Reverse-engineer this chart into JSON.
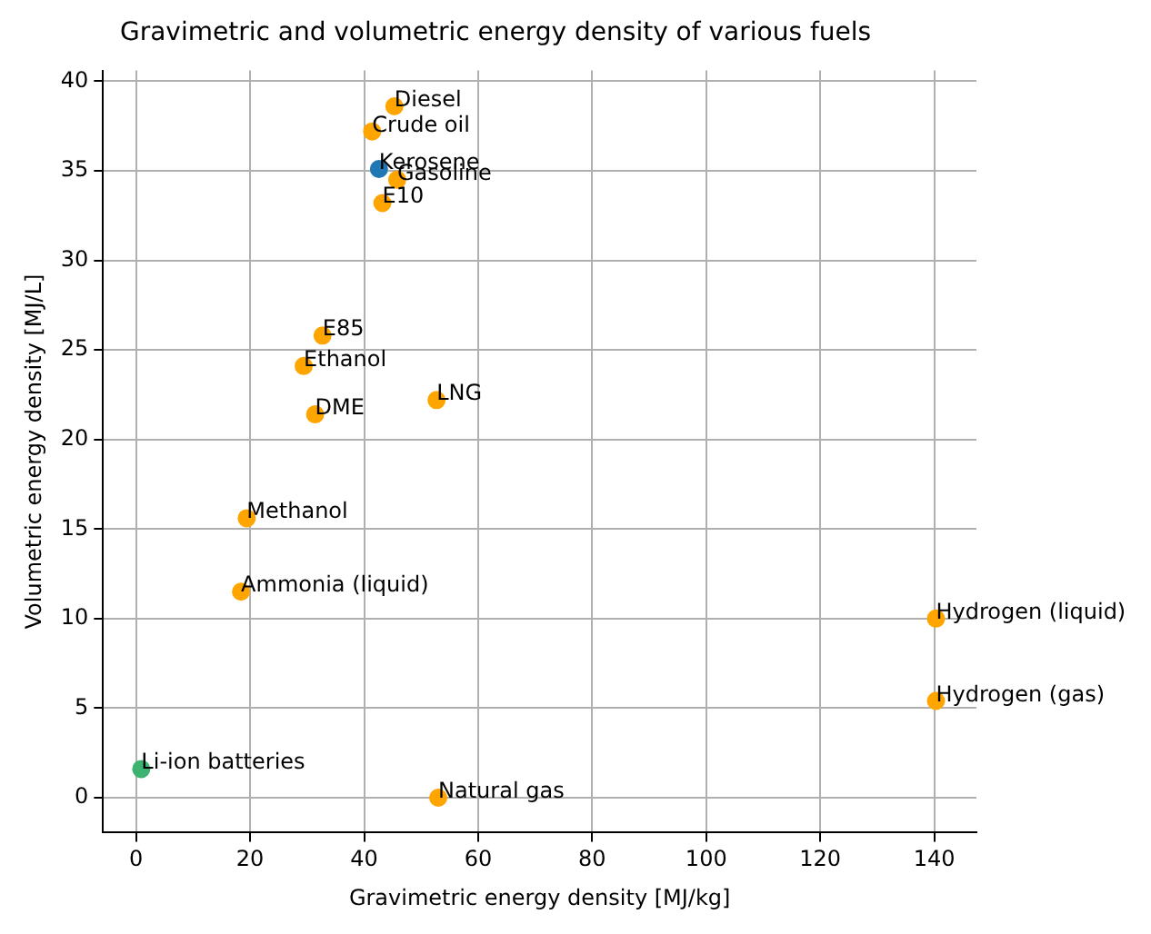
{
  "chart_data": {
    "type": "scatter",
    "title": "Gravimetric and volumetric energy density of various fuels",
    "xlabel": "Gravimetric energy density [MJ/kg]",
    "ylabel": "Volumetric energy density [MJ/L]",
    "x": [
      45.3,
      41.4,
      42.6,
      45.8,
      43.2,
      32.7,
      29.4,
      31.4,
      52.7,
      19.4,
      18.4,
      140.3,
      140.3,
      0.9,
      53.0
    ],
    "values": [
      38.6,
      37.2,
      35.1,
      34.5,
      33.2,
      25.8,
      24.1,
      21.4,
      22.2,
      15.6,
      11.5,
      10.0,
      5.4,
      1.6,
      0.0
    ],
    "colors": [
      "#ffa500",
      "#ffa500",
      "#1f77b4",
      "#ffa500",
      "#ffa500",
      "#ffa500",
      "#ffa500",
      "#ffa500",
      "#ffa500",
      "#ffa500",
      "#ffa500",
      "#ffa500",
      "#ffa500",
      "#3cb371",
      "#ffa500"
    ],
    "annotations": [
      {
        "text": "Diesel",
        "x": 45.3,
        "y": 38.6
      },
      {
        "text": "Crude oil",
        "x": 41.4,
        "y": 37.2
      },
      {
        "text": "Kerosene",
        "x": 42.6,
        "y": 35.1
      },
      {
        "text": "Gasoline",
        "x": 45.8,
        "y": 34.5
      },
      {
        "text": "E10",
        "x": 43.2,
        "y": 33.2
      },
      {
        "text": "E85",
        "x": 32.7,
        "y": 25.8
      },
      {
        "text": "Ethanol",
        "x": 29.4,
        "y": 24.1
      },
      {
        "text": "DME",
        "x": 31.4,
        "y": 21.4
      },
      {
        "text": "LNG",
        "x": 52.7,
        "y": 22.2
      },
      {
        "text": "Methanol",
        "x": 19.4,
        "y": 15.6
      },
      {
        "text": "Ammonia (liquid)",
        "x": 18.4,
        "y": 11.5
      },
      {
        "text": "Hydrogen (liquid)",
        "x": 140.3,
        "y": 10.0
      },
      {
        "text": "Hydrogen (gas)",
        "x": 140.3,
        "y": 5.4
      },
      {
        "text": "Li-ion batteries",
        "x": 0.9,
        "y": 1.6
      },
      {
        "text": "Natural gas",
        "x": 53.0,
        "y": 0.0
      }
    ],
    "xlim": [
      -5.8,
      147.4
    ],
    "ylim": [
      -1.95,
      40.6
    ],
    "xticks": [
      0,
      20,
      40,
      60,
      80,
      100,
      120,
      140
    ],
    "yticks": [
      0,
      5,
      10,
      15,
      20,
      25,
      30,
      35,
      40
    ],
    "grid": true,
    "marker": "circle",
    "legend": false
  }
}
